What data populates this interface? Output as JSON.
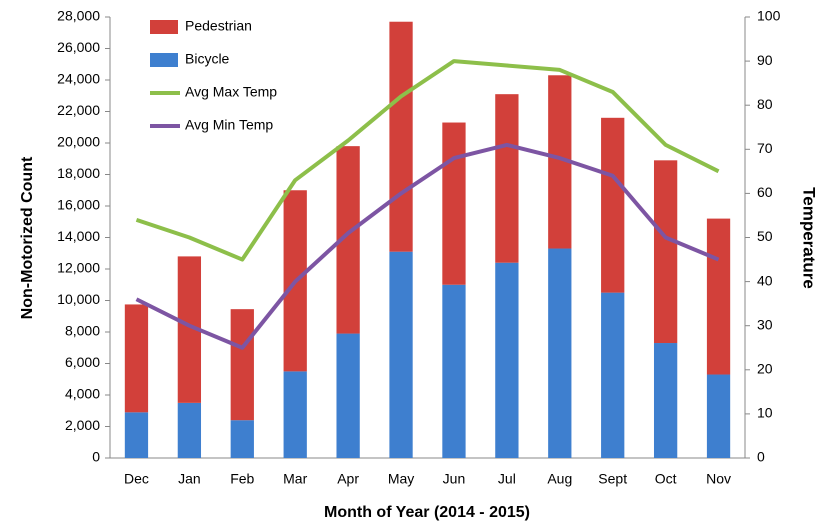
{
  "chart_data": {
    "type": "bar",
    "xlabel": "Month of Year (2014 - 2015)",
    "ylabel": "Non-Motorized Count",
    "y2label": "Temperature",
    "categories": [
      "Dec",
      "Jan",
      "Feb",
      "Mar",
      "Apr",
      "May",
      "Jun",
      "Jul",
      "Aug",
      "Sept",
      "Oct",
      "Nov"
    ],
    "series": [
      {
        "name": "Pedestrian",
        "type": "bar",
        "color": "#d2403a",
        "values": [
          6850,
          9300,
          7050,
          11500,
          11900,
          14600,
          10300,
          10700,
          11000,
          11100,
          11600,
          9900
        ]
      },
      {
        "name": "Bicycle",
        "type": "bar",
        "color": "#3e7fcf",
        "values": [
          2900,
          3500,
          2400,
          5500,
          7900,
          13100,
          11000,
          12400,
          13300,
          10500,
          7300,
          5300
        ]
      },
      {
        "name": "Avg Max Temp",
        "type": "line",
        "axis": "y2",
        "color": "#8dbf4a",
        "values": [
          54,
          50,
          45,
          63,
          72,
          82,
          90,
          89,
          88,
          83,
          71,
          65
        ]
      },
      {
        "name": "Avg Min Temp",
        "type": "line",
        "axis": "y2",
        "color": "#7d55a3",
        "values": [
          36,
          30,
          25,
          40,
          51,
          60,
          68,
          71,
          68,
          64,
          50,
          45
        ]
      }
    ],
    "ylim": [
      0,
      28000
    ],
    "yticks": [
      0,
      {
        "value": 2000,
        "label": "2,000"
      },
      {
        "value": 4000,
        "label": "4,000"
      },
      {
        "value": 6000,
        "label": "6,000"
      },
      {
        "value": 8000,
        "label": "8,000"
      },
      {
        "value": 10000,
        "label": "10,000"
      },
      {
        "value": 12000,
        "label": "12,000"
      },
      {
        "value": 14000,
        "label": "14,000"
      },
      {
        "value": 16000,
        "label": "16,000"
      },
      {
        "value": 18000,
        "label": "18,000"
      },
      {
        "value": 20000,
        "label": "20,000"
      },
      {
        "value": 22000,
        "label": "22,000"
      },
      {
        "value": 24000,
        "label": "24,000"
      },
      {
        "value": 26000,
        "label": "26,000"
      },
      {
        "value": 28000,
        "label": "28,000"
      }
    ],
    "y2lim": [
      0,
      100
    ],
    "y2ticks": [
      0,
      10,
      20,
      30,
      40,
      50,
      60,
      70,
      80,
      90,
      100
    ],
    "grid": false,
    "legend": "upper left"
  }
}
